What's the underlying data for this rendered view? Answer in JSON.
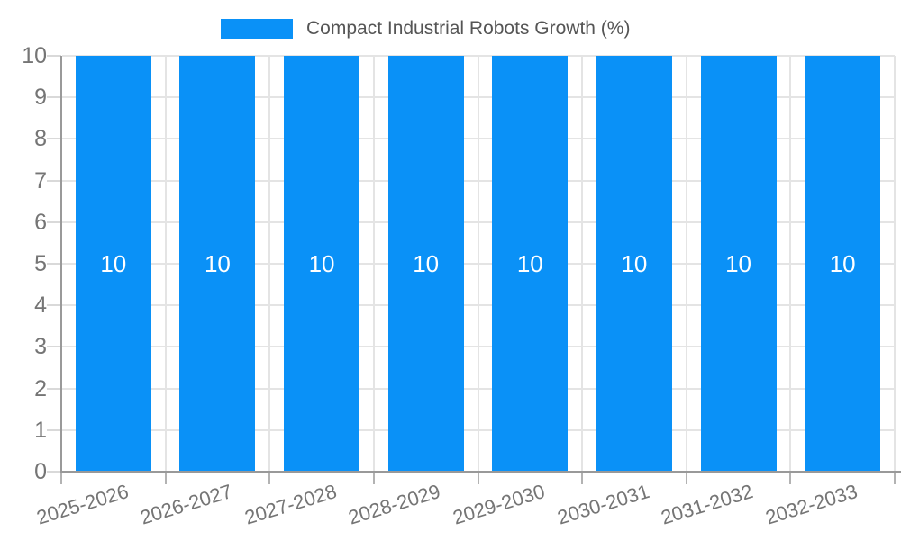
{
  "chart_data": {
    "type": "bar",
    "title": "",
    "legend": {
      "position": "top",
      "label": "Compact Industrial Robots Growth (%)"
    },
    "categories": [
      "2025-2026",
      "2026-2027",
      "2027-2028",
      "2028-2029",
      "2029-2030",
      "2030-2031",
      "2031-2032",
      "2032-2033"
    ],
    "series": [
      {
        "name": "Compact Industrial Robots Growth (%)",
        "color": "#0a91f7",
        "values": [
          10,
          10,
          10,
          10,
          10,
          10,
          10,
          10
        ],
        "data_labels": [
          "10",
          "10",
          "10",
          "10",
          "10",
          "10",
          "10",
          "10"
        ]
      }
    ],
    "xlabel": "",
    "ylabel": "",
    "ylim": [
      0,
      10
    ],
    "yticks": [
      0,
      1,
      2,
      3,
      4,
      5,
      6,
      7,
      8,
      9,
      10
    ],
    "grid": true,
    "x_label_rotation_deg": -17
  },
  "colors": {
    "bar": "#0a91f7",
    "axis_line": "#999999",
    "gridline": "#e4e4e4",
    "axis_label_text": "#757575",
    "legend_text": "#555555",
    "bar_value_text": "#ffffff",
    "background": "#ffffff"
  }
}
